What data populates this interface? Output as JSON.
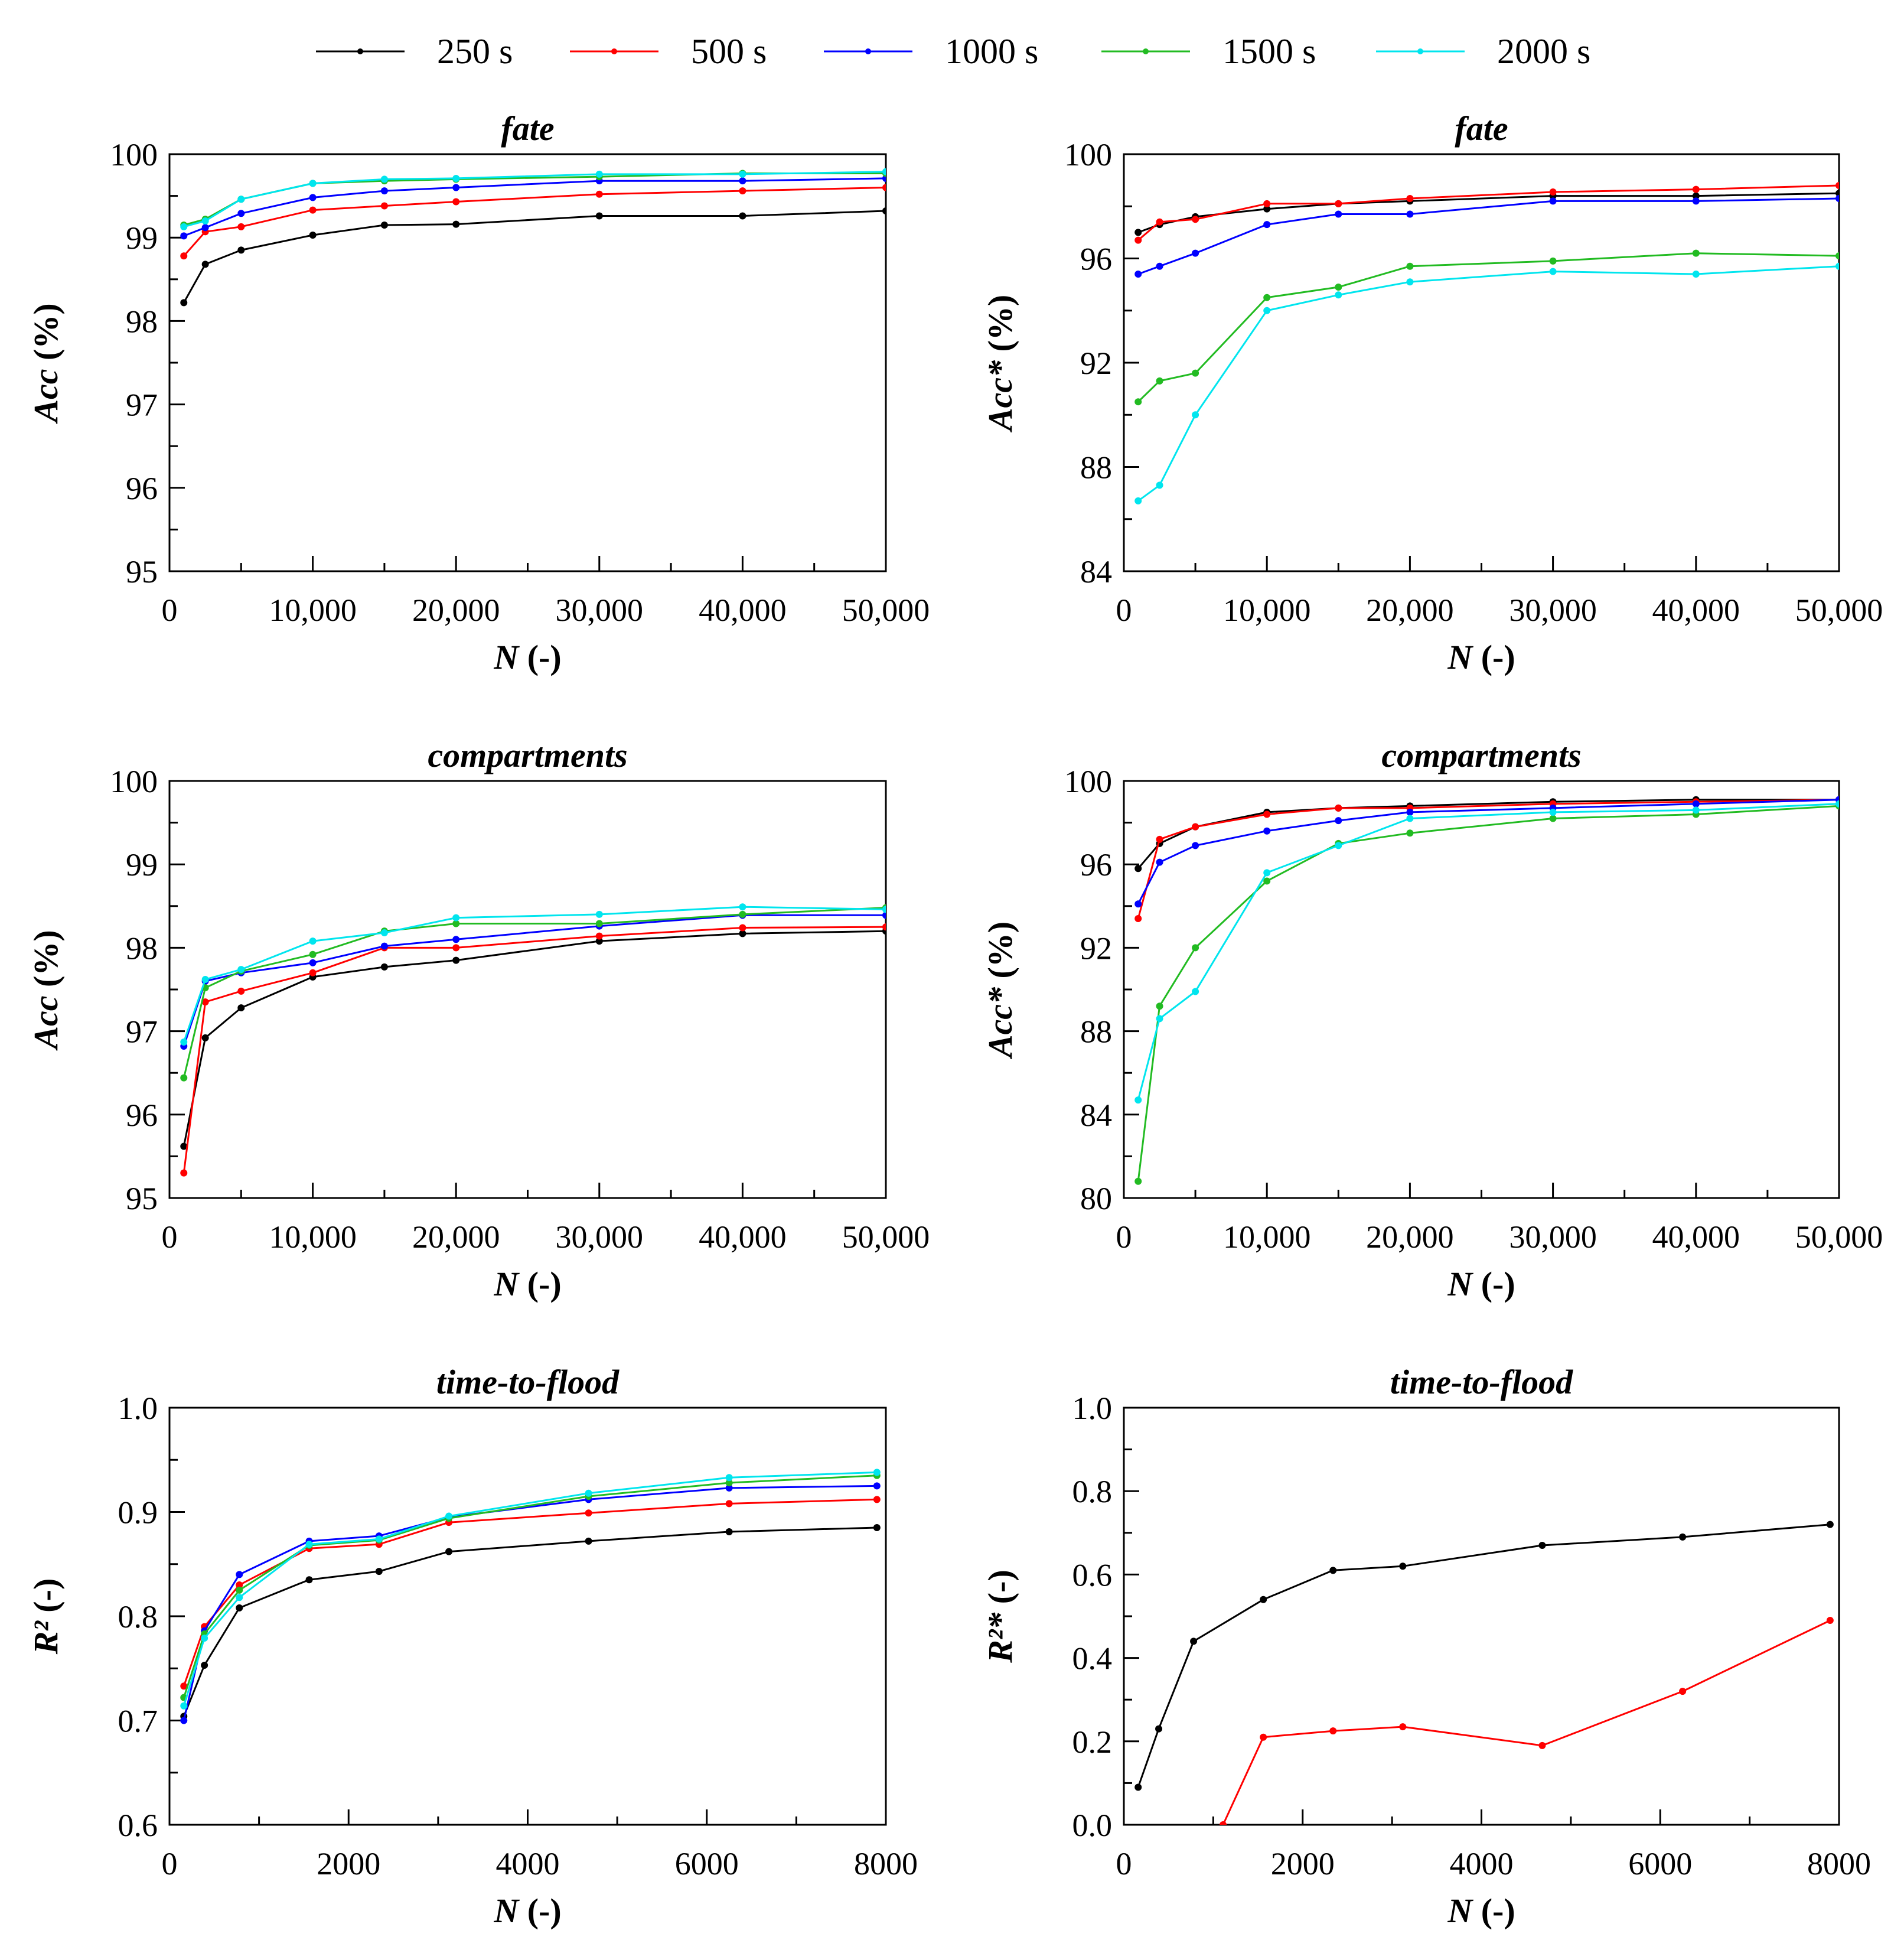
{
  "legend": [
    {
      "label": "250 s",
      "color": "#000000"
    },
    {
      "label": "500 s",
      "color": "#ff0000"
    },
    {
      "label": "1000 s",
      "color": "#0000ff"
    },
    {
      "label": "1500 s",
      "color": "#22bb22"
    },
    {
      "label": "2000 s",
      "color": "#00e5ee"
    }
  ],
  "chart_data": [
    {
      "type": "line",
      "title": "fate",
      "xlabel_main": "N",
      "xlabel_suffix": " (-)",
      "ylabel_main": "Acc",
      "ylabel_suffix": " (%)",
      "xlim": [
        0,
        50000
      ],
      "ylim": [
        95,
        100
      ],
      "xticks": [
        0,
        10000,
        20000,
        30000,
        40000,
        50000
      ],
      "xtick_labels": [
        "0",
        "10,000",
        "20,000",
        "30,000",
        "40,000",
        "50,000"
      ],
      "yticks": [
        95,
        96,
        97,
        98,
        99,
        100
      ],
      "ytick_labels": [
        "95",
        "96",
        "97",
        "98",
        "99",
        "100"
      ],
      "x": [
        1000,
        2500,
        5000,
        10000,
        15000,
        20000,
        30000,
        40000,
        50000
      ],
      "series": [
        {
          "name": "250 s",
          "values": [
            98.22,
            98.68,
            98.85,
            99.03,
            99.15,
            99.16,
            99.26,
            99.26,
            99.32
          ]
        },
        {
          "name": "500 s",
          "values": [
            98.78,
            99.07,
            99.13,
            99.33,
            99.38,
            99.43,
            99.52,
            99.56,
            99.6
          ]
        },
        {
          "name": "1000 s",
          "values": [
            99.02,
            99.12,
            99.29,
            99.48,
            99.56,
            99.6,
            99.68,
            99.68,
            99.71
          ]
        },
        {
          "name": "1500 s",
          "values": [
            99.15,
            99.22,
            99.46,
            99.65,
            99.68,
            99.7,
            99.73,
            99.77,
            99.77
          ]
        },
        {
          "name": "2000 s",
          "values": [
            99.13,
            99.2,
            99.46,
            99.65,
            99.7,
            99.71,
            99.76,
            99.76,
            99.79
          ]
        }
      ]
    },
    {
      "type": "line",
      "title": "fate",
      "xlabel_main": "N",
      "xlabel_suffix": " (-)",
      "ylabel_main": "Acc*",
      "ylabel_suffix": " (%)",
      "xlim": [
        0,
        50000
      ],
      "ylim": [
        84,
        100
      ],
      "xticks": [
        0,
        10000,
        20000,
        30000,
        40000,
        50000
      ],
      "xtick_labels": [
        "0",
        "10,000",
        "20,000",
        "30,000",
        "40,000",
        "50,000"
      ],
      "yticks": [
        84,
        88,
        92,
        96,
        100
      ],
      "ytick_labels": [
        "84",
        "88",
        "92",
        "96",
        "100"
      ],
      "x": [
        1000,
        2500,
        5000,
        10000,
        15000,
        20000,
        30000,
        40000,
        50000
      ],
      "series": [
        {
          "name": "250 s",
          "values": [
            97.0,
            97.3,
            97.6,
            97.9,
            98.1,
            98.2,
            98.4,
            98.4,
            98.5
          ]
        },
        {
          "name": "500 s",
          "values": [
            96.7,
            97.4,
            97.5,
            98.1,
            98.1,
            98.3,
            98.55,
            98.65,
            98.8
          ]
        },
        {
          "name": "1000 s",
          "values": [
            95.4,
            95.7,
            96.2,
            97.3,
            97.7,
            97.7,
            98.2,
            98.2,
            98.3
          ]
        },
        {
          "name": "1500 s",
          "values": [
            90.5,
            91.3,
            91.6,
            94.5,
            94.9,
            95.7,
            95.9,
            96.2,
            96.1
          ]
        },
        {
          "name": "2000 s",
          "values": [
            86.7,
            87.3,
            90.0,
            94.0,
            94.6,
            95.1,
            95.5,
            95.4,
            95.7
          ]
        }
      ]
    },
    {
      "type": "line",
      "title": "compartments",
      "xlabel_main": "N",
      "xlabel_suffix": " (-)",
      "ylabel_main": "Acc",
      "ylabel_suffix": " (%)",
      "xlim": [
        0,
        50000
      ],
      "ylim": [
        95,
        100
      ],
      "xticks": [
        0,
        10000,
        20000,
        30000,
        40000,
        50000
      ],
      "xtick_labels": [
        "0",
        "10,000",
        "20,000",
        "30,000",
        "40,000",
        "50,000"
      ],
      "yticks": [
        95,
        96,
        97,
        98,
        99,
        100
      ],
      "ytick_labels": [
        "95",
        "96",
        "97",
        "98",
        "99",
        "100"
      ],
      "x": [
        1000,
        2500,
        5000,
        10000,
        15000,
        20000,
        30000,
        40000,
        50000
      ],
      "series": [
        {
          "name": "250 s",
          "values": [
            95.62,
            96.92,
            97.28,
            97.65,
            97.77,
            97.85,
            98.08,
            98.17,
            98.2
          ]
        },
        {
          "name": "500 s",
          "values": [
            95.3,
            97.35,
            97.48,
            97.7,
            98.0,
            98.0,
            98.14,
            98.24,
            98.25
          ]
        },
        {
          "name": "1000 s",
          "values": [
            96.82,
            97.6,
            97.7,
            97.82,
            98.02,
            98.1,
            98.26,
            98.39,
            98.39
          ]
        },
        {
          "name": "1500 s",
          "values": [
            96.44,
            97.52,
            97.72,
            97.92,
            98.2,
            98.29,
            98.29,
            98.4,
            98.48
          ]
        },
        {
          "name": "2000 s",
          "values": [
            96.87,
            97.62,
            97.74,
            98.08,
            98.18,
            98.36,
            98.4,
            98.49,
            98.46
          ]
        }
      ]
    },
    {
      "type": "line",
      "title": "compartments",
      "xlabel_main": "N",
      "xlabel_suffix": " (-)",
      "ylabel_main": "Acc*",
      "ylabel_suffix": " (%)",
      "xlim": [
        0,
        50000
      ],
      "ylim": [
        80,
        100
      ],
      "xticks": [
        0,
        10000,
        20000,
        30000,
        40000,
        50000
      ],
      "xtick_labels": [
        "0",
        "10,000",
        "20,000",
        "30,000",
        "40,000",
        "50,000"
      ],
      "yticks": [
        80,
        84,
        88,
        92,
        96,
        100
      ],
      "ytick_labels": [
        "80",
        "84",
        "88",
        "92",
        "96",
        "100"
      ],
      "x": [
        1000,
        2500,
        5000,
        10000,
        15000,
        20000,
        30000,
        40000,
        50000
      ],
      "series": [
        {
          "name": "250 s",
          "values": [
            95.8,
            97.0,
            97.8,
            98.5,
            98.7,
            98.8,
            99.0,
            99.1,
            99.1
          ]
        },
        {
          "name": "500 s",
          "values": [
            93.4,
            97.2,
            97.8,
            98.4,
            98.7,
            98.7,
            98.9,
            99.0,
            99.1
          ]
        },
        {
          "name": "1000 s",
          "values": [
            94.1,
            96.1,
            96.9,
            97.6,
            98.1,
            98.5,
            98.7,
            98.9,
            99.1
          ]
        },
        {
          "name": "1500 s",
          "values": [
            80.8,
            89.2,
            92.0,
            95.2,
            97.0,
            97.5,
            98.2,
            98.4,
            98.8
          ]
        },
        {
          "name": "2000 s",
          "values": [
            84.7,
            88.6,
            89.9,
            95.6,
            96.9,
            98.2,
            98.5,
            98.6,
            98.9
          ]
        }
      ]
    },
    {
      "type": "line",
      "title": "time-to-flood",
      "xlabel_main": "N",
      "xlabel_suffix": " (-)",
      "ylabel_main": "R²",
      "ylabel_suffix": " (-)",
      "xlim": [
        0,
        8000
      ],
      "ylim": [
        0.6,
        1.0
      ],
      "xticks": [
        0,
        2000,
        4000,
        6000,
        8000
      ],
      "xtick_labels": [
        "0",
        "2000",
        "4000",
        "6000",
        "8000"
      ],
      "yticks": [
        0.6,
        0.7,
        0.8,
        0.9,
        1.0
      ],
      "ytick_labels": [
        "0.6",
        "0.7",
        "0.8",
        "0.9",
        "1.0"
      ],
      "x": [
        160,
        390,
        780,
        1560,
        2340,
        3120,
        4680,
        6250,
        7900
      ],
      "series": [
        {
          "name": "250 s",
          "values": [
            0.704,
            0.753,
            0.808,
            0.835,
            0.843,
            0.862,
            0.872,
            0.881,
            0.885
          ]
        },
        {
          "name": "500 s",
          "values": [
            0.733,
            0.79,
            0.83,
            0.865,
            0.869,
            0.89,
            0.899,
            0.908,
            0.912
          ]
        },
        {
          "name": "1000 s",
          "values": [
            0.7,
            0.786,
            0.84,
            0.872,
            0.877,
            0.895,
            0.912,
            0.923,
            0.925
          ]
        },
        {
          "name": "1500 s",
          "values": [
            0.722,
            0.783,
            0.825,
            0.868,
            0.873,
            0.894,
            0.915,
            0.928,
            0.935
          ]
        },
        {
          "name": "2000 s",
          "values": [
            0.714,
            0.779,
            0.818,
            0.869,
            0.874,
            0.896,
            0.918,
            0.933,
            0.938
          ]
        }
      ]
    },
    {
      "type": "line",
      "title": "time-to-flood",
      "xlabel_main": "N",
      "xlabel_suffix": " (-)",
      "ylabel_main": "R²*",
      "ylabel_suffix": " (-)",
      "xlim": [
        0,
        8000
      ],
      "ylim": [
        0.0,
        1.0
      ],
      "xticks": [
        0,
        2000,
        4000,
        6000,
        8000
      ],
      "xtick_labels": [
        "0",
        "2000",
        "4000",
        "6000",
        "8000"
      ],
      "yticks": [
        0.0,
        0.2,
        0.4,
        0.6,
        0.8,
        1.0
      ],
      "ytick_labels": [
        "0.0",
        "0.2",
        "0.4",
        "0.6",
        "0.8",
        "1.0"
      ],
      "x": [
        160,
        390,
        780,
        1560,
        2340,
        3120,
        4680,
        6250,
        7900
      ],
      "series": [
        {
          "name": "250 s",
          "values": [
            0.09,
            0.23,
            0.44,
            0.54,
            0.61,
            0.62,
            0.67,
            0.69,
            0.72
          ]
        },
        {
          "name": "500 s",
          "x": [
            1110,
            1560,
            2340,
            3120,
            4680,
            6250,
            7900
          ],
          "values": [
            0.0,
            0.21,
            0.225,
            0.235,
            0.19,
            0.32,
            0.49
          ]
        }
      ]
    }
  ]
}
